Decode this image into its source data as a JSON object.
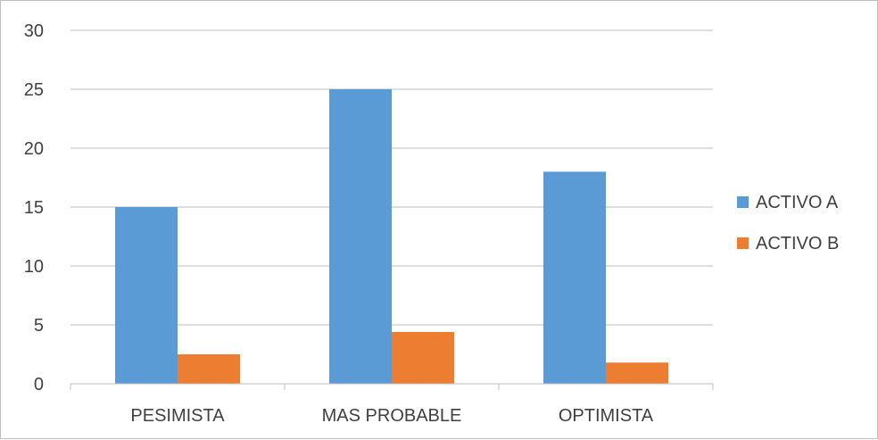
{
  "chart_data": {
    "type": "bar",
    "categories": [
      "PESIMISTA",
      "MAS PROBABLE",
      "OPTIMISTA"
    ],
    "series": [
      {
        "name": "ACTIVO A",
        "color": "#5b9bd5",
        "values": [
          15,
          25,
          18
        ]
      },
      {
        "name": "ACTIVO B",
        "color": "#ed7d31",
        "values": [
          2.5,
          4.4,
          1.8
        ]
      }
    ],
    "ylim": [
      0,
      30
    ],
    "yticks": [
      0,
      5,
      10,
      15,
      20,
      25,
      30
    ],
    "grid": true,
    "legend_position": "right",
    "title": "",
    "xlabel": "",
    "ylabel": ""
  }
}
